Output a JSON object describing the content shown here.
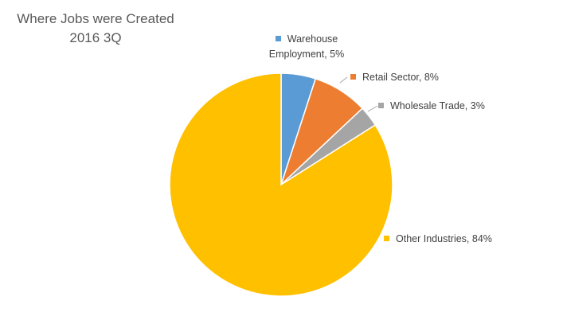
{
  "chart_data": {
    "type": "pie",
    "title": "Where Jobs were Created",
    "subtitle": "2016 3Q",
    "values": [
      5,
      8,
      3,
      84
    ],
    "value_labels": [
      "Warehouse Employment, 5%",
      "Retail Sector, 8%",
      "Wholesale Trade, 3%",
      "Other Industries, 84%"
    ],
    "colors": [
      "#5b9bd5",
      "#ed7d31",
      "#a5a5a5",
      "#ffc000"
    ]
  }
}
